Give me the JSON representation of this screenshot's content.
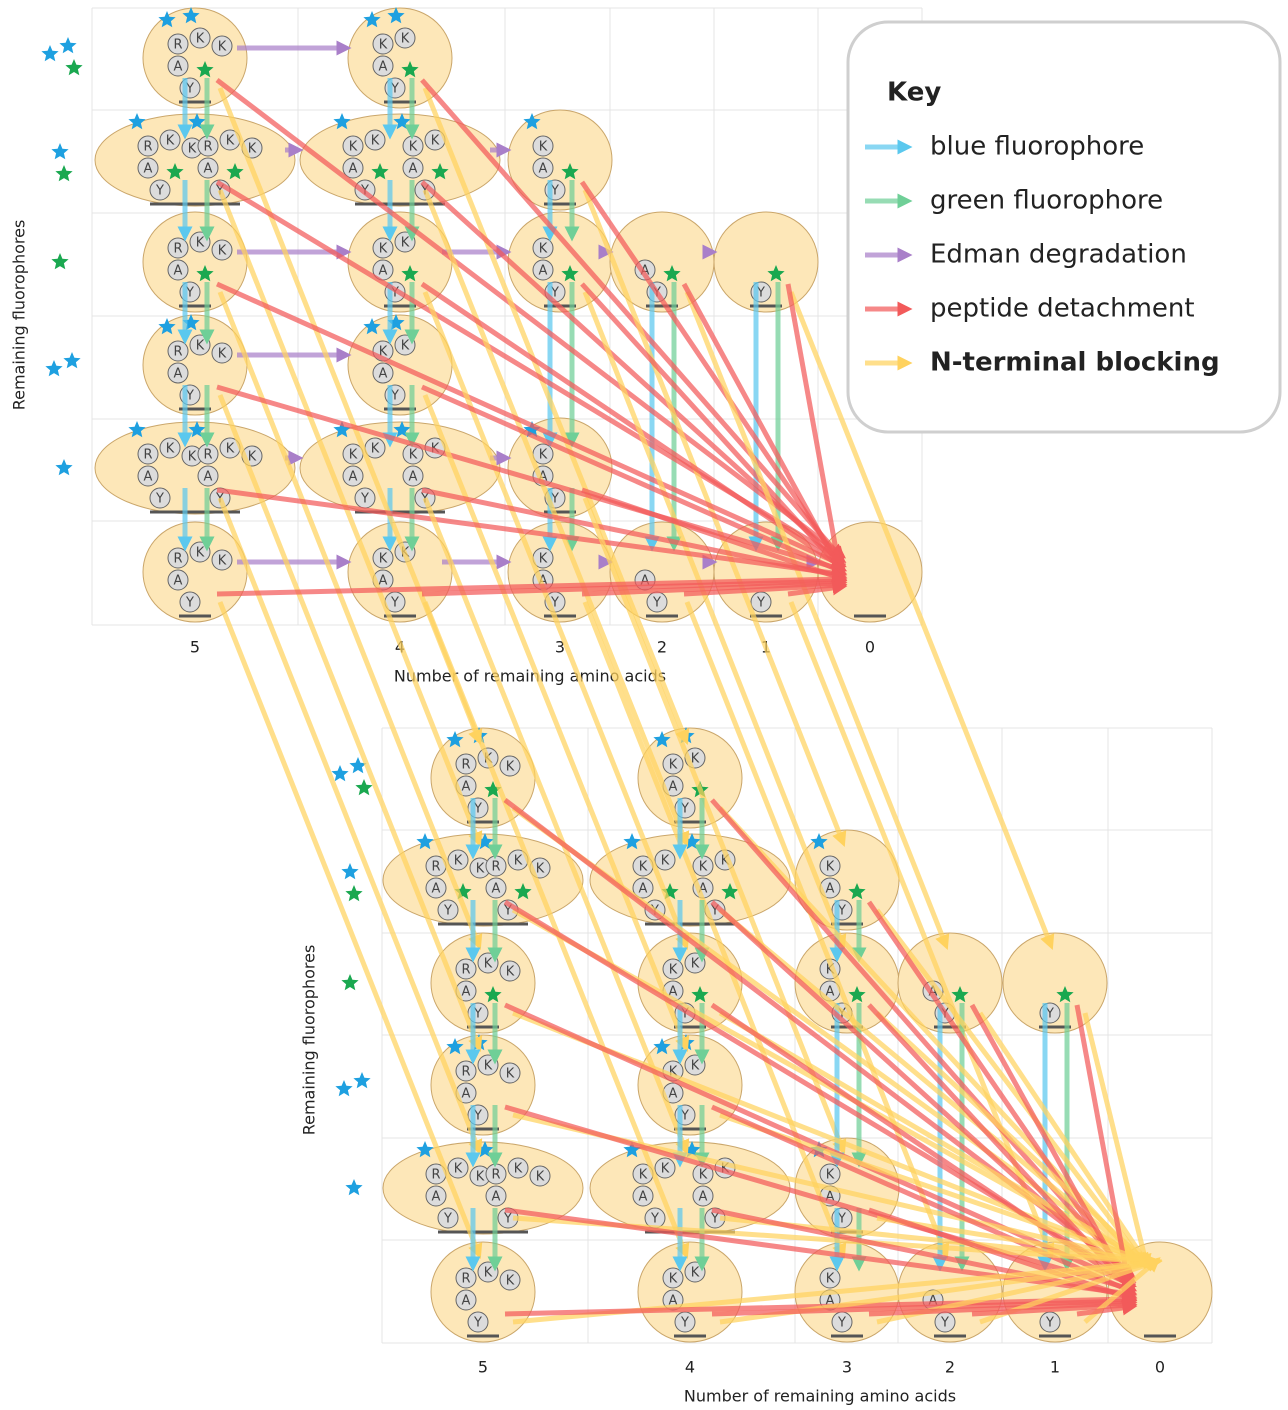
{
  "key": {
    "title": "Key",
    "items": [
      {
        "label": "blue fluorophore",
        "color": "#5bc8ee"
      },
      {
        "label": "green fluorophore",
        "color": "#6fcf97"
      },
      {
        "label": "Edman degradation",
        "color": "#a97fc9"
      },
      {
        "label": "peptide detachment",
        "color": "#f25a5a"
      },
      {
        "label": "N-terminal blocking",
        "color": "#ffd25e"
      }
    ]
  },
  "panels": [
    {
      "x_labels": [
        5,
        4,
        3,
        2,
        1,
        0
      ],
      "x_axis_label": "Number of remaining amino acids",
      "y_axis_label": "Remaining fluorophores",
      "rows": [
        [
          [
            [
              "K",
              "K",
              "R",
              "A",
              "Y"
            ]
          ],
          [
            [
              "K",
              "K",
              "A",
              "Y"
            ]
          ],
          null,
          null,
          null,
          null
        ],
        [
          [
            [
              "K",
              "K",
              "R",
              "A",
              "Y"
            ],
            [
              "K",
              "K",
              "R",
              "A",
              "Y"
            ]
          ],
          [
            [
              "K",
              "K",
              "A",
              "Y"
            ],
            [
              "K",
              "K",
              "A",
              "Y"
            ]
          ],
          [
            [
              "K",
              "A",
              "Y"
            ]
          ],
          null,
          null,
          null
        ],
        [
          [
            [
              "K",
              "K",
              "R",
              "A",
              "Y"
            ]
          ],
          [
            [
              "K",
              "K",
              "A",
              "Y"
            ]
          ],
          [
            [
              "K",
              "A",
              "Y"
            ]
          ],
          [
            [
              "A",
              "Y"
            ]
          ],
          [
            [
              "Y"
            ]
          ],
          null
        ],
        [
          [
            [
              "K",
              "K",
              "R",
              "A",
              "Y"
            ]
          ],
          [
            [
              "K",
              "K",
              "A",
              "Y"
            ]
          ],
          null,
          null,
          null,
          null
        ],
        [
          [
            [
              "K",
              "K",
              "R",
              "A",
              "Y"
            ],
            [
              "K",
              "K",
              "R",
              "A",
              "Y"
            ]
          ],
          [
            [
              "K",
              "K",
              "A",
              "Y"
            ],
            [
              "K",
              "K",
              "A",
              "Y"
            ]
          ],
          [
            [
              "K",
              "A",
              "Y"
            ]
          ],
          null,
          null,
          null
        ],
        [
          [
            [
              "K",
              "K",
              "R",
              "A",
              "Y"
            ]
          ],
          [
            [
              "K",
              "K",
              "A",
              "Y"
            ]
          ],
          [
            [
              "K",
              "A",
              "Y"
            ]
          ],
          [
            [
              "A",
              "Y"
            ]
          ],
          [
            [
              "Y"
            ]
          ],
          []
        ]
      ]
    },
    {
      "x_labels": [
        5,
        4,
        3,
        2,
        1,
        0
      ],
      "x_axis_label": "Number of remaining amino acids",
      "y_axis_label": "Remaining fluorophores",
      "rows": [
        [
          [
            [
              "K",
              "K",
              "R",
              "A",
              "Y"
            ]
          ],
          [
            [
              "K",
              "K",
              "A",
              "Y"
            ]
          ],
          null,
          null,
          null,
          null
        ],
        [
          [
            [
              "K",
              "K",
              "R",
              "A",
              "Y"
            ],
            [
              "K",
              "K",
              "R",
              "A",
              "Y"
            ]
          ],
          [
            [
              "K",
              "K",
              "A",
              "Y"
            ],
            [
              "K",
              "K",
              "A",
              "Y"
            ]
          ],
          [
            [
              "K",
              "A",
              "Y"
            ]
          ],
          null,
          null,
          null
        ],
        [
          [
            [
              "K",
              "K",
              "R",
              "A",
              "Y"
            ]
          ],
          [
            [
              "K",
              "K",
              "A",
              "Y"
            ]
          ],
          [
            [
              "K",
              "A",
              "Y"
            ]
          ],
          [
            [
              "A",
              "Y"
            ]
          ],
          [
            [
              "Y"
            ]
          ],
          null
        ],
        [
          [
            [
              "K",
              "K",
              "R",
              "A",
              "Y"
            ]
          ],
          [
            [
              "K",
              "K",
              "A",
              "Y"
            ]
          ],
          null,
          null,
          null,
          null
        ],
        [
          [
            [
              "K",
              "K",
              "R",
              "A",
              "Y"
            ],
            [
              "K",
              "K",
              "R",
              "A",
              "Y"
            ]
          ],
          [
            [
              "K",
              "K",
              "A",
              "Y"
            ],
            [
              "K",
              "K",
              "A",
              "Y"
            ]
          ],
          [
            [
              "K",
              "A",
              "Y"
            ]
          ],
          null,
          null,
          null
        ],
        [
          [
            [
              "K",
              "K",
              "R",
              "A",
              "Y"
            ]
          ],
          [
            [
              "K",
              "K",
              "A",
              "Y"
            ]
          ],
          [
            [
              "K",
              "A",
              "Y"
            ]
          ],
          [
            [
              "A",
              "Y"
            ]
          ],
          [
            [
              "Y"
            ]
          ],
          []
        ]
      ]
    }
  ]
}
